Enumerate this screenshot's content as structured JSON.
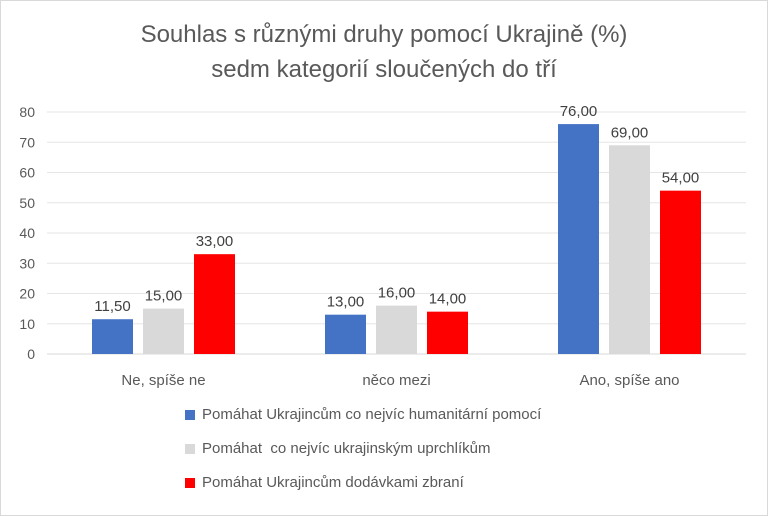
{
  "chart_data": {
    "type": "bar",
    "title_line1": "Souhlas s různými druhy pomocí Ukrajině (%)",
    "title_line2": "sedm kategorií sloučených do tří",
    "categories": [
      "Ne, spíše ne",
      "něco mezi",
      "Ano, spíše ano"
    ],
    "series": [
      {
        "name": "Pomáhat Ukrajincům co nejvíc humanitární pomocí",
        "values": [
          11.5,
          13,
          76
        ],
        "labels": [
          "11,50",
          "13,00",
          "76,00"
        ],
        "color": "#4472c4"
      },
      {
        "name": "Pomáhat  co nejvíc ukrajinským uprchlíkům",
        "values": [
          15,
          16,
          69
        ],
        "labels": [
          "15,00",
          "16,00",
          "69,00"
        ],
        "color": "#d9d9d9"
      },
      {
        "name": "Pomáhat Ukrajincům dodávkami zbraní",
        "values": [
          33,
          14,
          54
        ],
        "labels": [
          "33,00",
          "14,00",
          "54,00"
        ],
        "color": "#ff0000"
      }
    ],
    "ylim": [
      0,
      80
    ],
    "yticks": [
      "0",
      "10",
      "20",
      "30",
      "40",
      "50",
      "60",
      "70",
      "80"
    ],
    "grid": true,
    "legend_position": "bottom"
  }
}
